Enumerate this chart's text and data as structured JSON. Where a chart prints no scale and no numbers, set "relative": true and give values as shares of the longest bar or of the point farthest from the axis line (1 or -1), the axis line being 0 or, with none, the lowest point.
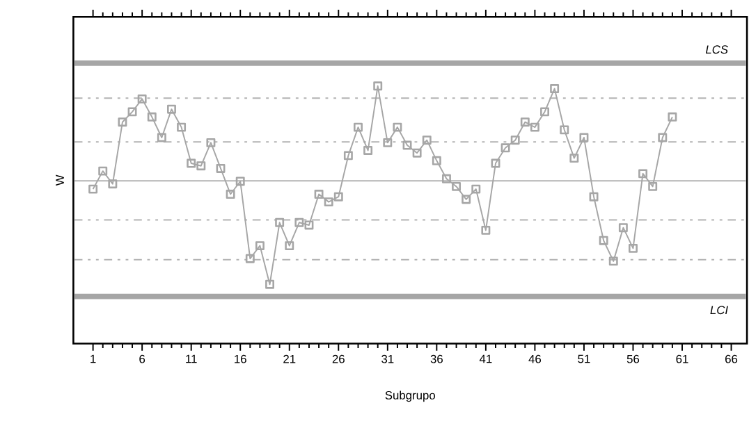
{
  "chart_data": {
    "type": "line",
    "relative": true,
    "xlabel": "Subgrupo",
    "ylabel": "W",
    "x": [
      1,
      2,
      3,
      4,
      5,
      6,
      7,
      8,
      9,
      10,
      11,
      12,
      13,
      14,
      15,
      16,
      17,
      18,
      19,
      20,
      21,
      22,
      23,
      24,
      25,
      26,
      27,
      28,
      29,
      30,
      31,
      32,
      33,
      34,
      35,
      36,
      37,
      38,
      39,
      40,
      41,
      42,
      43,
      44,
      45,
      46,
      47,
      48,
      49,
      50,
      51,
      52,
      53,
      54,
      55,
      56,
      57,
      58,
      59,
      60
    ],
    "values": [
      0.6,
      0.67,
      0.62,
      0.86,
      0.9,
      0.95,
      0.88,
      0.8,
      0.91,
      0.84,
      0.7,
      0.69,
      0.78,
      0.68,
      0.58,
      0.63,
      0.33,
      0.38,
      0.23,
      0.47,
      0.38,
      0.47,
      0.46,
      0.58,
      0.55,
      0.57,
      0.73,
      0.84,
      0.75,
      1.0,
      0.78,
      0.84,
      0.77,
      0.74,
      0.79,
      0.71,
      0.64,
      0.61,
      0.56,
      0.6,
      0.44,
      0.7,
      0.76,
      0.79,
      0.86,
      0.84,
      0.9,
      0.99,
      0.83,
      0.72,
      0.8,
      0.57,
      0.4,
      0.32,
      0.45,
      0.37,
      0.66,
      0.61,
      0.8,
      0.88
    ],
    "color": "#a6a6a6",
    "marker": "square",
    "line_style": "solid",
    "xlim": [
      -1,
      67.6
    ],
    "xticks": [
      1,
      6,
      11,
      16,
      21,
      26,
      31,
      36,
      41,
      46,
      51,
      56,
      61,
      66
    ],
    "tick_labels": "x",
    "ref_lines": [
      {
        "axis": "y",
        "value": 1.089,
        "label": "LCS",
        "color": "#a6a6a6",
        "line_style": "solid"
      },
      {
        "axis": "y",
        "value": 0.953,
        "color": "#b3b3b3",
        "line_style": "dashed"
      },
      {
        "axis": "y",
        "value": 0.783,
        "color": "#b3b3b3",
        "line_style": "dashed"
      },
      {
        "axis": "y",
        "value": 0.632,
        "color": "#b3b3b3",
        "line_style": "solid"
      },
      {
        "axis": "y",
        "value": 0.48,
        "color": "#b3b3b3",
        "line_style": "dashed"
      },
      {
        "axis": "y",
        "value": 0.326,
        "color": "#b3b3b3",
        "line_style": "dashed"
      },
      {
        "axis": "y",
        "value": 0.183,
        "label": "LCI",
        "color": "#a6a6a6",
        "line_style": "solid"
      }
    ]
  }
}
